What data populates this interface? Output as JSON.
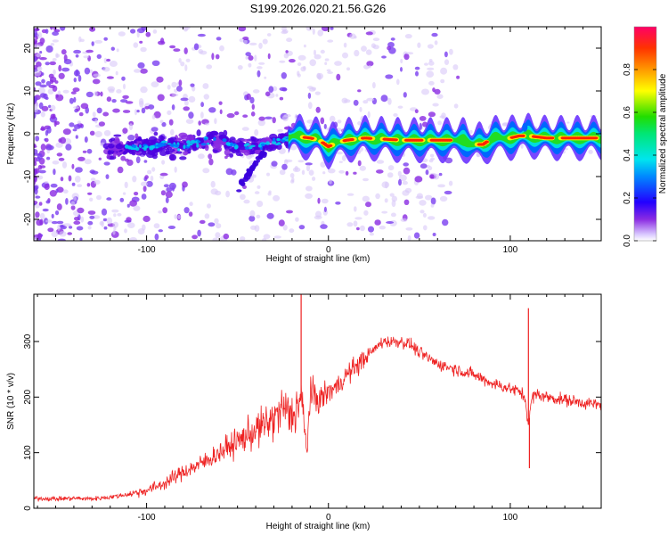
{
  "title": "S199.2026.020.21.56.G26",
  "chart_data": [
    {
      "type": "heatmap",
      "name": "spectrogram",
      "xlabel": "Height of straight line (km)",
      "ylabel": "Frequency (Hz)",
      "xlim": [
        -162,
        150
      ],
      "ylim": [
        -25,
        25
      ],
      "xticks": [
        -100,
        0,
        100
      ],
      "yticks": [
        -20,
        -10,
        0,
        10,
        20
      ],
      "colorbar": {
        "label": "Normalized spectral amplitude",
        "range": [
          0,
          1
        ],
        "ticks": [
          0.0,
          0.2,
          0.4,
          0.6,
          0.8
        ]
      },
      "ridge": {
        "x": [
          -120,
          -100,
          -80,
          -60,
          -50,
          -40,
          -30,
          -22,
          -20,
          -10,
          -5,
          0,
          5,
          10,
          20,
          40,
          60,
          75,
          80,
          85,
          90,
          100,
          105,
          110,
          120,
          140,
          150
        ],
        "y": [
          -3.5,
          -3,
          -2.5,
          -1.5,
          -3,
          -3,
          -2,
          -1,
          -0.5,
          -1,
          -1.5,
          -3,
          -2,
          -1.5,
          -1,
          -1.5,
          -1.5,
          -1.5,
          -2.5,
          -2.5,
          -1,
          -1,
          -0.5,
          -0.5,
          -1,
          -1,
          -1
        ]
      }
    },
    {
      "type": "line",
      "name": "snr",
      "xlabel": "Height of straight line (km)",
      "ylabel": "SNR (10 * v/v)",
      "xlim": [
        -162,
        150
      ],
      "ylim": [
        0,
        385
      ],
      "xticks": [
        -100,
        0,
        100
      ],
      "yticks": [
        0,
        100,
        200,
        300
      ],
      "color": "#ee2222",
      "series": [
        {
          "name": "SNR",
          "x": [
            -162,
            -150,
            -140,
            -130,
            -120,
            -110,
            -100,
            -90,
            -80,
            -70,
            -60,
            -50,
            -40,
            -30,
            -25,
            -20,
            -15,
            -12,
            -10,
            -5,
            0,
            5,
            10,
            20,
            30,
            40,
            45,
            50,
            60,
            70,
            80,
            90,
            100,
            105,
            108,
            110,
            112,
            115,
            120,
            130,
            140,
            150
          ],
          "y": [
            18,
            17,
            18,
            17,
            20,
            25,
            32,
            45,
            65,
            80,
            100,
            120,
            140,
            160,
            180,
            165,
            200,
            100,
            205,
            195,
            210,
            220,
            240,
            270,
            300,
            300,
            295,
            280,
            260,
            250,
            240,
            225,
            215,
            210,
            200,
            150,
            200,
            205,
            200,
            195,
            190,
            185
          ]
        }
      ],
      "spikes": [
        {
          "x": -15,
          "y": 385
        },
        {
          "x": 110,
          "y": 360
        },
        {
          "x": 110.5,
          "y": 72
        }
      ]
    }
  ]
}
